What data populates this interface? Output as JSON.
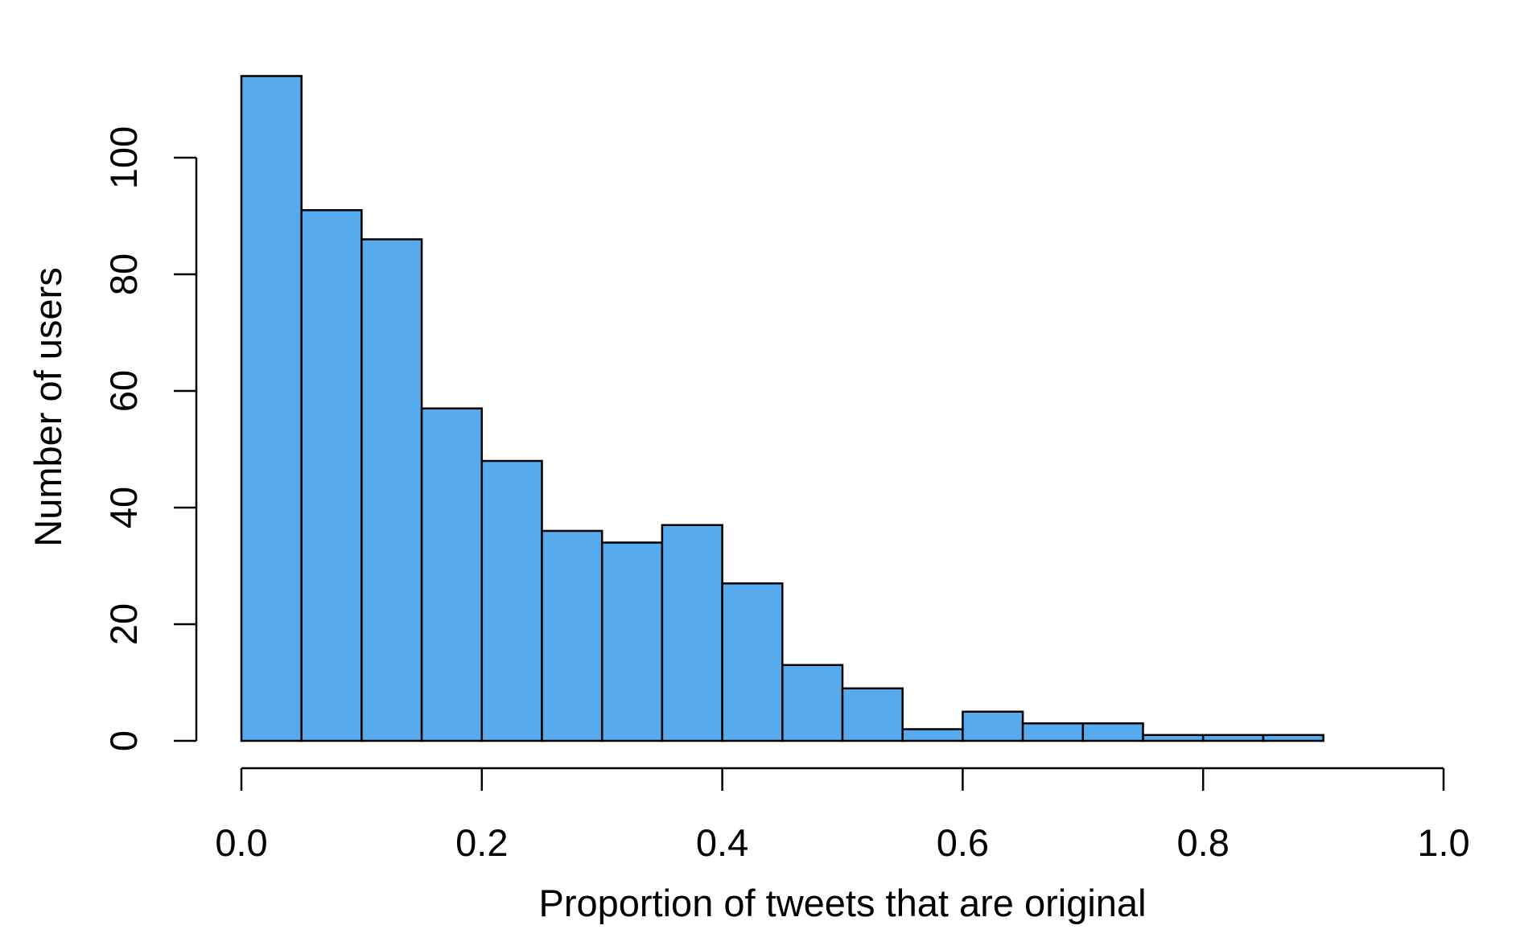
{
  "chart_data": {
    "type": "bar",
    "subtype": "histogram",
    "title": "",
    "xlabel": "Proportion of tweets that are original",
    "ylabel": "Number of users",
    "bin_width": 0.05,
    "bins": [
      {
        "start": 0.0,
        "end": 0.05,
        "count": 114
      },
      {
        "start": 0.05,
        "end": 0.1,
        "count": 91
      },
      {
        "start": 0.1,
        "end": 0.15,
        "count": 86
      },
      {
        "start": 0.15,
        "end": 0.2,
        "count": 57
      },
      {
        "start": 0.2,
        "end": 0.25,
        "count": 48
      },
      {
        "start": 0.25,
        "end": 0.3,
        "count": 36
      },
      {
        "start": 0.3,
        "end": 0.35,
        "count": 34
      },
      {
        "start": 0.35,
        "end": 0.4,
        "count": 37
      },
      {
        "start": 0.4,
        "end": 0.45,
        "count": 27
      },
      {
        "start": 0.45,
        "end": 0.5,
        "count": 13
      },
      {
        "start": 0.5,
        "end": 0.55,
        "count": 9
      },
      {
        "start": 0.55,
        "end": 0.6,
        "count": 2
      },
      {
        "start": 0.6,
        "end": 0.65,
        "count": 5
      },
      {
        "start": 0.65,
        "end": 0.7,
        "count": 3
      },
      {
        "start": 0.7,
        "end": 0.75,
        "count": 3
      },
      {
        "start": 0.75,
        "end": 0.8,
        "count": 1
      },
      {
        "start": 0.8,
        "end": 0.85,
        "count": 1
      },
      {
        "start": 0.85,
        "end": 0.9,
        "count": 1
      }
    ],
    "xlim": [
      0,
      1
    ],
    "ylim": [
      0,
      114
    ],
    "x_ticks": [
      "0.0",
      "0.2",
      "0.4",
      "0.6",
      "0.8",
      "1.0"
    ],
    "y_ticks": [
      "0",
      "20",
      "40",
      "60",
      "80",
      "100"
    ],
    "bar_color": "#56ABEF",
    "edge_color": "#000000",
    "grid": false,
    "legend": "none"
  }
}
